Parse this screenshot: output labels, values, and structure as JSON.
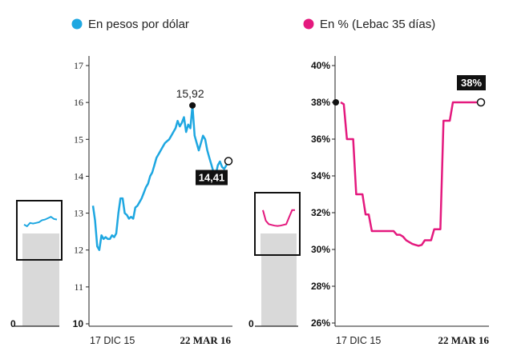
{
  "chart_data": [
    {
      "type": "line",
      "legend": "En pesos por dólar",
      "color": "#1ea7e1",
      "ylim": [
        10,
        17
      ],
      "yticks": [
        "17",
        "16",
        "15",
        "14",
        "13",
        "12",
        "11",
        "10"
      ],
      "yticks_bold": [
        "10"
      ],
      "x_labels": [
        "17 DIC 15",
        "22 MAR 16"
      ],
      "inset_baseline": "0",
      "x": [
        0,
        1,
        2,
        3,
        4,
        5,
        6,
        7,
        8,
        9,
        10,
        11,
        12,
        13,
        14,
        15,
        16,
        17,
        18,
        19,
        20,
        21,
        22,
        23,
        24,
        25,
        26,
        27,
        28,
        29,
        30,
        31,
        32,
        33,
        34,
        35,
        36,
        37,
        38,
        39,
        40,
        41,
        42,
        43,
        44,
        45,
        46,
        47,
        48,
        49,
        50,
        51,
        52,
        53,
        54,
        55,
        56,
        57,
        58,
        59,
        60,
        61,
        62,
        63,
        64
      ],
      "values": [
        13.2,
        12.8,
        12.1,
        12.0,
        12.4,
        12.3,
        12.35,
        12.3,
        12.3,
        12.4,
        12.35,
        12.45,
        13.0,
        13.4,
        13.4,
        13.0,
        12.95,
        12.85,
        12.9,
        12.85,
        13.15,
        13.2,
        13.3,
        13.4,
        13.55,
        13.7,
        13.8,
        14.0,
        14.1,
        14.3,
        14.5,
        14.6,
        14.7,
        14.8,
        14.9,
        14.95,
        15.0,
        15.1,
        15.2,
        15.3,
        15.5,
        15.35,
        15.45,
        15.6,
        15.2,
        15.4,
        15.3,
        15.92,
        15.1,
        14.9,
        14.7,
        14.9,
        15.1,
        15.0,
        14.7,
        14.5,
        14.3,
        14.1,
        14.05,
        14.3,
        14.4,
        14.25,
        14.2,
        14.3,
        14.41
      ],
      "max_label": "15,92",
      "max_index": 47,
      "last_label": "14,41",
      "inset_values": [
        0.55,
        0.5,
        0.6,
        0.58,
        0.6,
        0.62,
        0.68,
        0.7,
        0.74,
        0.78,
        0.72,
        0.7
      ]
    },
    {
      "type": "line",
      "legend": "En % (Lebac 35 días)",
      "color": "#e4197e",
      "ylim": [
        26,
        40
      ],
      "yticks": [
        "40%",
        "38%",
        "36%",
        "34%",
        "32%",
        "30%",
        "28%",
        "26%"
      ],
      "x_labels": [
        "17 DIC 15",
        "22 MAR 16"
      ],
      "inset_baseline": "0",
      "x": [
        0,
        1,
        2,
        3,
        4,
        5,
        6,
        7,
        8,
        9,
        10,
        11,
        12,
        13,
        14,
        15,
        16,
        17,
        18,
        19,
        20,
        21,
        22,
        23,
        24,
        25,
        26,
        27,
        28,
        29,
        30,
        31,
        32,
        33,
        34,
        35,
        36,
        37,
        38,
        39,
        40,
        41,
        42,
        43,
        44,
        45
      ],
      "values": [
        38.0,
        37.9,
        36.0,
        36.0,
        36.0,
        33.0,
        33.0,
        33.0,
        31.9,
        31.9,
        31.0,
        31.0,
        31.0,
        31.0,
        31.0,
        31.0,
        31.0,
        31.0,
        30.8,
        30.8,
        30.7,
        30.5,
        30.4,
        30.3,
        30.25,
        30.2,
        30.25,
        30.5,
        30.5,
        30.5,
        31.1,
        31.1,
        31.1,
        37.0,
        37.0,
        37.0,
        38.0,
        38.0,
        38.0,
        38.0,
        38.0,
        38.0,
        38.0,
        38.0,
        38.0,
        38.0
      ],
      "last_label": "38%",
      "inset_values": [
        0.8,
        0.5,
        0.4,
        0.38,
        0.36,
        0.35,
        0.36,
        0.38,
        0.4,
        0.6,
        0.8,
        0.8
      ]
    }
  ]
}
